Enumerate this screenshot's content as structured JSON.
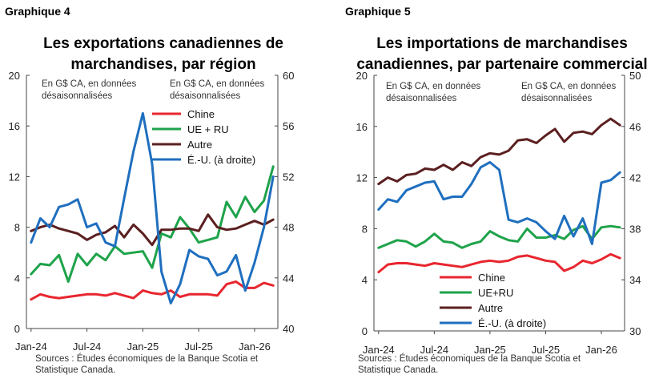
{
  "charts": [
    {
      "label": "Graphique 4",
      "title": "Les exportations canadiennes de\nmarchandises, par région",
      "note_left": [
        "En G$ CA, en données",
        "désaisonnalisées"
      ],
      "note_right": [
        "En G$ CA, en données",
        "désaisonnalisées"
      ],
      "legend": [
        "Chine",
        "UE + RU",
        "Autre",
        "É.-U. (à droite)"
      ],
      "source": [
        "Sources : Études économiques de la Banque Scotia et",
        "Statistique Canada."
      ]
    },
    {
      "label": "Graphique 5",
      "title": "Les importations de marchandises\ncanadiennes, par partenaire commercial",
      "note_left": [
        "En G$ CA, en données",
        "désaisonnalisées"
      ],
      "note_right": [
        "En G$ CA, en données",
        "désaisonnalisées"
      ],
      "legend": [
        "Chine",
        "UE+RU",
        "Autre",
        "É.-U. (à droite)"
      ],
      "source": [
        "Sources : Études économiques de la Banque Scotia et",
        "Statistique Canada."
      ]
    }
  ],
  "chart_data": [
    {
      "type": "line",
      "title": "Les exportations canadiennes de marchandises, par région",
      "x": [
        "2024-01",
        "2024-02",
        "2024-03",
        "2024-04",
        "2024-05",
        "2024-06",
        "2024-07",
        "2024-08",
        "2024-09",
        "2024-10",
        "2024-11",
        "2024-12",
        "2025-01",
        "2025-02",
        "2025-03",
        "2025-04",
        "2025-05",
        "2025-06",
        "2025-07",
        "2025-08",
        "2025-09",
        "2025-10",
        "2025-11",
        "2025-12",
        "2026-01",
        "2026-02",
        "2026-03"
      ],
      "x_tick_labels": [
        "Jan-24",
        "Jul-24",
        "Jan-25",
        "Jul-25",
        "Jan-26"
      ],
      "y_left_ticks": [
        "0",
        "4",
        "8",
        "12",
        "16",
        "20"
      ],
      "y_right_ticks": [
        "40",
        "44",
        "48",
        "52",
        "56",
        "60"
      ],
      "ylim_left": [
        0,
        20
      ],
      "ylim_right": [
        40,
        60
      ],
      "grid": false,
      "legend_position": "right",
      "series": [
        {
          "name": "Chine",
          "axis": "left",
          "color": "#e8262f",
          "values": [
            2.3,
            2.7,
            2.5,
            2.4,
            2.5,
            2.6,
            2.7,
            2.7,
            2.6,
            2.8,
            2.6,
            2.4,
            3.0,
            2.8,
            2.7,
            3.0,
            2.5,
            2.7,
            2.7,
            2.7,
            2.6,
            3.5,
            3.7,
            3.2,
            3.2,
            3.6,
            3.4
          ]
        },
        {
          "name": "UE + RU",
          "axis": "left",
          "color": "#1ea34a",
          "values": [
            4.3,
            5.1,
            5.0,
            5.8,
            3.7,
            5.9,
            5.0,
            5.9,
            5.4,
            6.5,
            5.9,
            6.0,
            6.1,
            4.8,
            7.5,
            7.2,
            8.8,
            7.9,
            6.8,
            7.0,
            7.2,
            10.0,
            8.8,
            10.4,
            9.2,
            10.1,
            12.8
          ]
        },
        {
          "name": "Autre",
          "axis": "left",
          "color": "#5b1f1f",
          "values": [
            7.7,
            8.0,
            8.2,
            7.9,
            7.7,
            7.5,
            7.0,
            7.4,
            7.6,
            8.1,
            7.2,
            8.2,
            7.5,
            6.6,
            7.8,
            7.8,
            7.9,
            7.9,
            7.7,
            9.0,
            8.0,
            7.8,
            7.9,
            8.2,
            8.5,
            8.2,
            8.6
          ]
        },
        {
          "name": "É.-U. (à droite)",
          "axis": "right",
          "color": "#1f6fbf",
          "values": [
            46.8,
            48.7,
            48.0,
            49.6,
            49.8,
            50.2,
            48.0,
            48.3,
            46.8,
            46.5,
            50.3,
            54.0,
            57.0,
            53.0,
            44.5,
            42.0,
            43.5,
            46.2,
            45.7,
            45.5,
            44.2,
            44.5,
            45.8,
            43.0,
            45.2,
            48.0,
            52.0
          ]
        }
      ]
    },
    {
      "type": "line",
      "title": "Les importations de marchandises canadiennes, par partenaire commercial",
      "x": [
        "2024-01",
        "2024-02",
        "2024-03",
        "2024-04",
        "2024-05",
        "2024-06",
        "2024-07",
        "2024-08",
        "2024-09",
        "2024-10",
        "2024-11",
        "2024-12",
        "2025-01",
        "2025-02",
        "2025-03",
        "2025-04",
        "2025-05",
        "2025-06",
        "2025-07",
        "2025-08",
        "2025-09",
        "2025-10",
        "2025-11",
        "2025-12",
        "2026-01",
        "2026-02",
        "2026-03"
      ],
      "x_tick_labels": [
        "Jan-24",
        "Jul-24",
        "Jan-25",
        "Jul-25",
        "Jan-26"
      ],
      "y_left_ticks": [
        "0",
        "4",
        "8",
        "12",
        "16",
        "20"
      ],
      "y_right_ticks": [
        "30",
        "34",
        "38",
        "42",
        "46",
        "50"
      ],
      "ylim_left": [
        0,
        20
      ],
      "ylim_right": [
        30,
        50
      ],
      "grid": false,
      "legend_position": "bottom-left",
      "series": [
        {
          "name": "Chine",
          "axis": "left",
          "color": "#e8262f",
          "values": [
            4.6,
            5.2,
            5.3,
            5.3,
            5.2,
            5.1,
            5.3,
            5.2,
            5.1,
            5.0,
            5.2,
            5.4,
            5.5,
            5.4,
            5.5,
            5.8,
            5.9,
            5.7,
            5.5,
            5.4,
            4.7,
            5.0,
            5.5,
            5.3,
            5.6,
            6.0,
            5.7
          ]
        },
        {
          "name": "UE+RU",
          "axis": "left",
          "color": "#1ea34a",
          "values": [
            6.5,
            6.8,
            7.1,
            7.0,
            6.6,
            7.0,
            7.6,
            7.0,
            6.9,
            6.5,
            6.8,
            7.0,
            7.8,
            7.4,
            7.1,
            7.0,
            8.0,
            7.3,
            7.3,
            7.5,
            7.2,
            7.9,
            8.2,
            7.2,
            8.1,
            8.2,
            8.1
          ]
        },
        {
          "name": "Autre",
          "axis": "left",
          "color": "#5b1f1f",
          "values": [
            11.5,
            12.0,
            11.7,
            12.2,
            12.3,
            12.7,
            12.6,
            13.0,
            12.6,
            13.2,
            12.9,
            13.6,
            13.9,
            13.8,
            14.1,
            14.9,
            15.0,
            14.7,
            15.3,
            15.8,
            14.8,
            15.5,
            15.6,
            15.4,
            16.1,
            16.6,
            16.1
          ]
        },
        {
          "name": "É.-U. (à droite)",
          "axis": "right",
          "color": "#1f6fbf",
          "values": [
            39.5,
            40.3,
            40.1,
            41.0,
            41.3,
            41.6,
            41.7,
            40.3,
            40.5,
            40.5,
            41.5,
            42.8,
            43.2,
            42.6,
            38.7,
            38.5,
            38.8,
            38.5,
            37.8,
            37.2,
            39.0,
            37.4,
            38.8,
            36.8,
            41.6,
            41.8,
            42.4
          ]
        }
      ]
    }
  ]
}
